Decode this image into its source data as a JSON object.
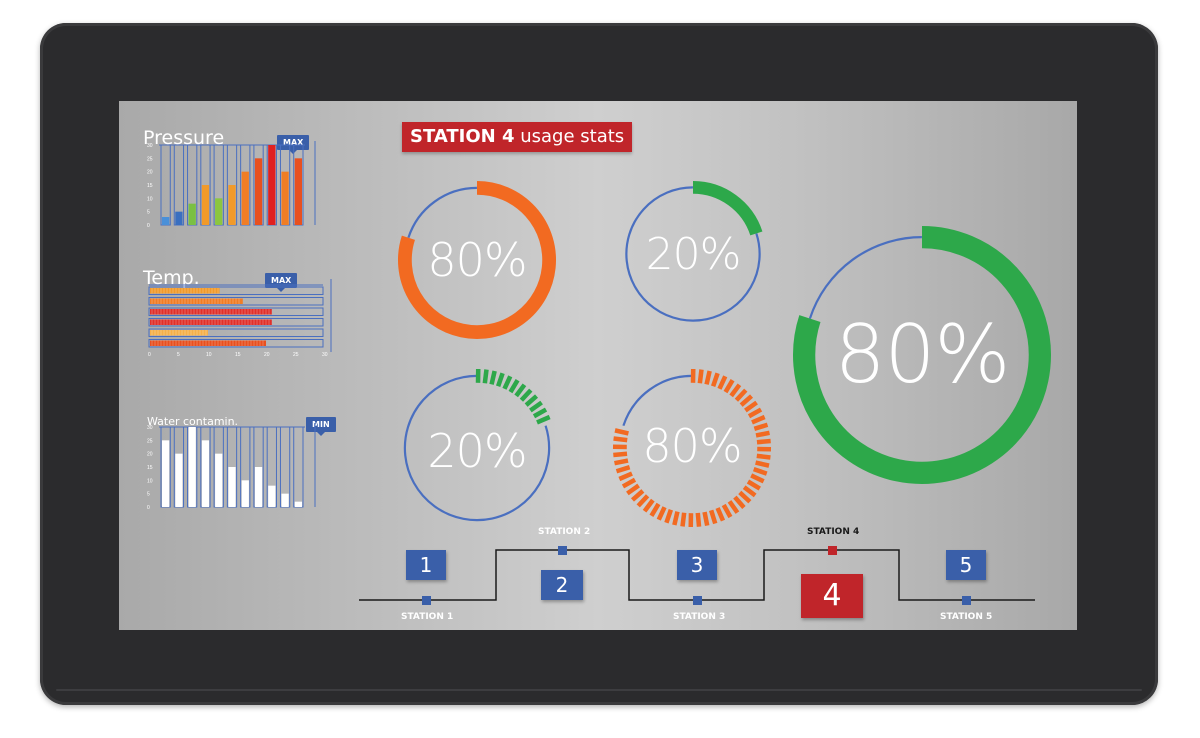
{
  "header": {
    "station_bold": "STATION 4",
    "station_rest": " usage stats"
  },
  "left_panels": {
    "pressure": {
      "title": "Pressure",
      "tag": "MAX"
    },
    "temp": {
      "title": "Temp.",
      "tag": "MAX"
    },
    "water": {
      "title": "Water contamin.",
      "tag": "MIN"
    }
  },
  "chart_data": [
    {
      "type": "bar",
      "title": "Pressure",
      "ylim": [
        0,
        30
      ],
      "yticks": [
        "30",
        "25",
        "20",
        "15",
        "10",
        "5",
        "0"
      ],
      "values": [
        3,
        5,
        8,
        15,
        10,
        15,
        20,
        25,
        30,
        20,
        25
      ],
      "colors": [
        "#4a90d9",
        "#3a6fc0",
        "#7ac043",
        "#f19a2a",
        "#8cc63f",
        "#f19a2a",
        "#f07d25",
        "#e8501f",
        "#e02020",
        "#f07d25",
        "#e8501f"
      ]
    },
    {
      "type": "bar",
      "title": "Temp.",
      "orientation": "horizontal",
      "xlim": [
        0,
        30
      ],
      "xticks": [
        "0",
        "5",
        "10",
        "15",
        "20",
        "25",
        "30"
      ],
      "values": [
        12,
        16,
        21,
        21,
        10,
        20
      ],
      "colors": [
        "#f19a2a",
        "#f07d25",
        "#e0302a",
        "#e0302a",
        "#f5b04a",
        "#e8501f"
      ]
    },
    {
      "type": "bar",
      "title": "Water contamin.",
      "ylim": [
        0,
        30
      ],
      "yticks": [
        "30",
        "25",
        "20",
        "15",
        "10",
        "5",
        "0"
      ],
      "values": [
        25,
        20,
        30,
        25,
        20,
        15,
        10,
        15,
        8,
        5,
        2
      ]
    }
  ],
  "gauges": [
    {
      "label": "80%",
      "value": 0.8,
      "color": "#f26a21",
      "style": "solid"
    },
    {
      "label": "20%",
      "value": 0.2,
      "color": "#2da84a",
      "style": "solid"
    },
    {
      "label": "80%",
      "value": 0.8,
      "color": "#2da84a",
      "style": "solid"
    },
    {
      "label": "20%",
      "value": 0.2,
      "color": "#2da84a",
      "style": "segmented"
    },
    {
      "label": "80%",
      "value": 0.8,
      "color": "#f26a21",
      "style": "segmented"
    }
  ],
  "stations": [
    {
      "number": "1",
      "name": "STATION 1"
    },
    {
      "number": "2",
      "name": "STATION 2"
    },
    {
      "number": "3",
      "name": "STATION 3"
    },
    {
      "number": "4",
      "name": "STATION 4",
      "active": true
    },
    {
      "number": "5",
      "name": "STATION 5"
    }
  ],
  "colors": {
    "accent_blue": "#3a5fa9",
    "alert_red": "#c0252a",
    "track_blue": "#4a6fc0"
  }
}
